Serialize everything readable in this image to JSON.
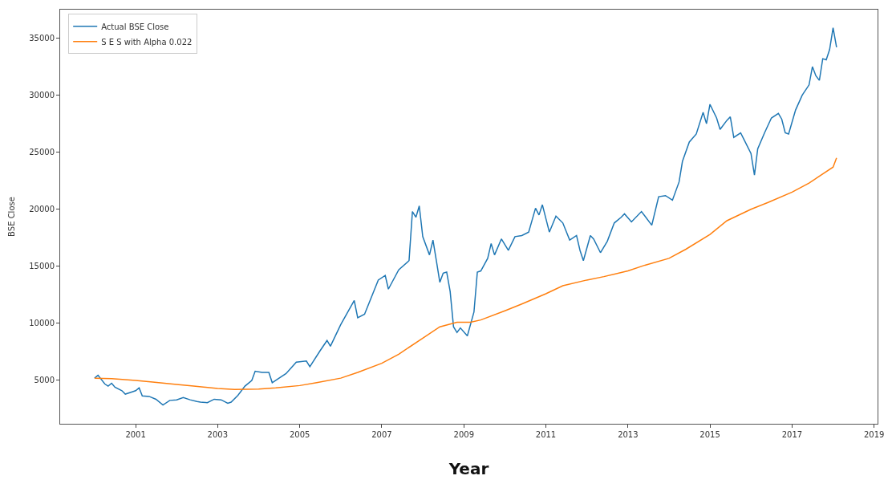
{
  "chart_data": {
    "type": "line",
    "xlabel": "Year",
    "ylabel": "BSE Close",
    "legend": "top left",
    "grid": false,
    "marker": "none",
    "line_style": "solid",
    "xlim": [
      "1999-03",
      "2019-02"
    ],
    "xticks": [
      "2001",
      "2003",
      "2005",
      "2007",
      "2009",
      "2011",
      "2013",
      "2015",
      "2017",
      "2019"
    ],
    "ylim": [
      1200,
      37500
    ],
    "yticks": [
      5000,
      10000,
      15000,
      20000,
      25000,
      30000,
      35000
    ],
    "series": [
      {
        "name": "Actual BSE Close",
        "color": "#1f77b4",
        "x": [
          "2000-01",
          "2000-02",
          "2000-04",
          "2000-05",
          "2000-06",
          "2000-07",
          "2000-09",
          "2000-10",
          "2000-12",
          "2001-01",
          "2001-02",
          "2001-03",
          "2001-05",
          "2001-07",
          "2001-09",
          "2001-11",
          "2002-01",
          "2002-03",
          "2002-05",
          "2002-07",
          "2002-08",
          "2002-10",
          "2002-12",
          "2003-02",
          "2003-04",
          "2003-05",
          "2003-07",
          "2003-09",
          "2003-11",
          "2003-12",
          "2004-02",
          "2004-04",
          "2004-05",
          "2004-07",
          "2004-09",
          "2004-12",
          "2005-03",
          "2005-04",
          "2005-07",
          "2005-09",
          "2005-10",
          "2006-01",
          "2006-05",
          "2006-06",
          "2006-08",
          "2006-12",
          "2007-02",
          "2007-03",
          "2007-06",
          "2007-09",
          "2007-10",
          "2007-11",
          "2007-12",
          "2008-01",
          "2008-03",
          "2008-04",
          "2008-05",
          "2008-06",
          "2008-07",
          "2008-08",
          "2008-09",
          "2008-10",
          "2008-11",
          "2008-12",
          "2009-02",
          "2009-04",
          "2009-05",
          "2009-06",
          "2009-08",
          "2009-09",
          "2009-10",
          "2009-12",
          "2010-02",
          "2010-04",
          "2010-06",
          "2010-08",
          "2010-10",
          "2010-11",
          "2010-12",
          "2011-02",
          "2011-04",
          "2011-06",
          "2011-08",
          "2011-10",
          "2011-11",
          "2011-12",
          "2012-02",
          "2012-03",
          "2012-05",
          "2012-07",
          "2012-09",
          "2012-11",
          "2012-12",
          "2013-02",
          "2013-05",
          "2013-06",
          "2013-08",
          "2013-10",
          "2013-12",
          "2014-02",
          "2014-04",
          "2014-05",
          "2014-07",
          "2014-09",
          "2014-11",
          "2014-12",
          "2015-01",
          "2015-03",
          "2015-04",
          "2015-06",
          "2015-07",
          "2015-08",
          "2015-10",
          "2015-11",
          "2016-01",
          "2016-02",
          "2016-03",
          "2016-05",
          "2016-07",
          "2016-09",
          "2016-10",
          "2016-11",
          "2016-12",
          "2017-02",
          "2017-04",
          "2017-06",
          "2017-07",
          "2017-08",
          "2017-09",
          "2017-10",
          "2017-11",
          "2017-12",
          "2018-01",
          "2018-02"
        ],
        "values": [
          5200,
          5450,
          4700,
          4500,
          4750,
          4400,
          4100,
          3800,
          4000,
          4100,
          4350,
          3650,
          3600,
          3350,
          2850,
          3250,
          3300,
          3500,
          3300,
          3150,
          3100,
          3050,
          3350,
          3300,
          3000,
          3100,
          3700,
          4500,
          5000,
          5800,
          5700,
          5700,
          4800,
          5200,
          5600,
          6600,
          6700,
          6200,
          7600,
          8500,
          8000,
          9900,
          12000,
          10500,
          10800,
          13800,
          14200,
          13000,
          14700,
          15500,
          19800,
          19300,
          20300,
          17600,
          16000,
          17300,
          15500,
          13600,
          14400,
          14500,
          12800,
          9700,
          9200,
          9600,
          8900,
          11000,
          14500,
          14600,
          15700,
          17000,
          16000,
          17400,
          16400,
          17600,
          17700,
          18000,
          20100,
          19500,
          20400,
          18000,
          19400,
          18800,
          17300,
          17700,
          16400,
          15500,
          17700,
          17400,
          16200,
          17200,
          18800,
          19300,
          19600,
          18900,
          19800,
          19400,
          18600,
          21100,
          21200,
          20800,
          22400,
          24200,
          25900,
          26600,
          28500,
          27500,
          29200,
          28000,
          27000,
          27800,
          28100,
          26300,
          26700,
          26100,
          24900,
          23000,
          25300,
          26700,
          28000,
          28400,
          27900,
          26700,
          26600,
          28700,
          30000,
          30900,
          32500,
          31700,
          31300,
          33200,
          33100,
          34000,
          35900,
          34200
        ]
      },
      {
        "name": "S E S with Alpha 0.022",
        "color": "#ff7f0e",
        "x": [
          "2000-01",
          "2000-06",
          "2001-01",
          "2001-06",
          "2002-01",
          "2002-06",
          "2003-01",
          "2003-06",
          "2004-01",
          "2004-06",
          "2005-01",
          "2005-06",
          "2006-01",
          "2006-06",
          "2007-01",
          "2007-06",
          "2008-01",
          "2008-06",
          "2008-11",
          "2009-03",
          "2009-06",
          "2010-01",
          "2010-06",
          "2011-01",
          "2011-06",
          "2012-01",
          "2012-06",
          "2013-01",
          "2013-06",
          "2014-01",
          "2014-06",
          "2015-01",
          "2015-06",
          "2016-01",
          "2016-06",
          "2017-01",
          "2017-06",
          "2018-01",
          "2018-02"
        ],
        "values": [
          5200,
          5150,
          5000,
          4850,
          4650,
          4500,
          4300,
          4200,
          4250,
          4350,
          4550,
          4800,
          5200,
          5700,
          6500,
          7300,
          8700,
          9700,
          10100,
          10100,
          10300,
          11100,
          11700,
          12600,
          13300,
          13800,
          14100,
          14600,
          15100,
          15700,
          16500,
          17800,
          19000,
          20000,
          20600,
          21500,
          22300,
          23700,
          24500
        ]
      }
    ]
  }
}
